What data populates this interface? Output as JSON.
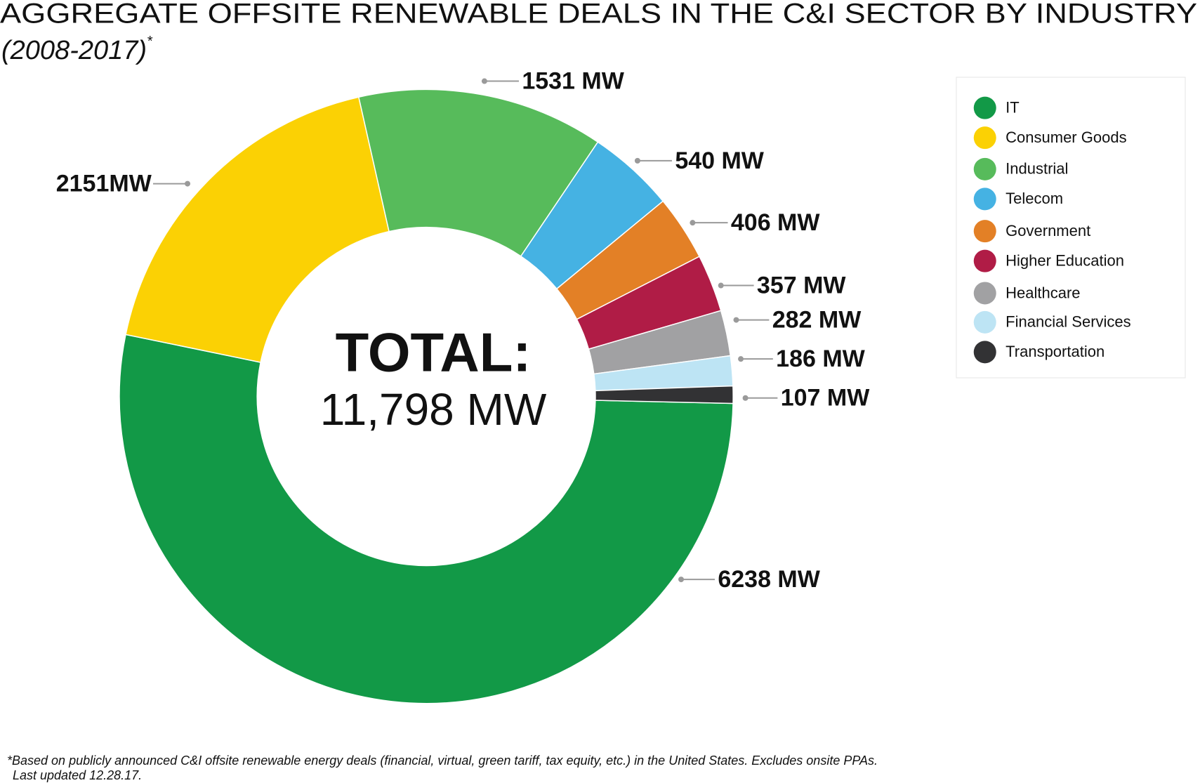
{
  "chart_data": {
    "type": "donut",
    "title": "AGGREGATE OFFSITE RENEWABLE DEALS IN THE C&I SECTOR BY INDUSTRY",
    "subtitle": "(2008-2017)",
    "subtitle_mark": "*",
    "center_title": "TOTAL:",
    "center_value": "11,798 MW",
    "categories": [
      "IT",
      "Consumer Goods",
      "Industrial",
      "Telecom",
      "Government",
      "Higher Education",
      "Healthcare",
      "Financial Services",
      "Transportation"
    ],
    "values": [
      6238,
      2151,
      1531,
      540,
      406,
      357,
      282,
      186,
      107
    ],
    "value_labels": [
      "6238 MW",
      "2151MW",
      "1531 MW",
      "540 MW",
      "406 MW",
      "357 MW",
      "282 MW",
      "186 MW",
      "107 MW"
    ],
    "colors": [
      "#129947",
      "#fbd104",
      "#57bb5b",
      "#45b2e3",
      "#e38026",
      "#b01c46",
      "#a1a1a3",
      "#bde4f4",
      "#323234"
    ],
    "legend": "right",
    "footnote": [
      "*Based on publicly announced C&I offsite renewable energy deals (financial, virtual, green tariff, tax equity, etc.) in the United States. Excludes onsite PPAs.",
      "Last updated 12.28.17."
    ]
  }
}
